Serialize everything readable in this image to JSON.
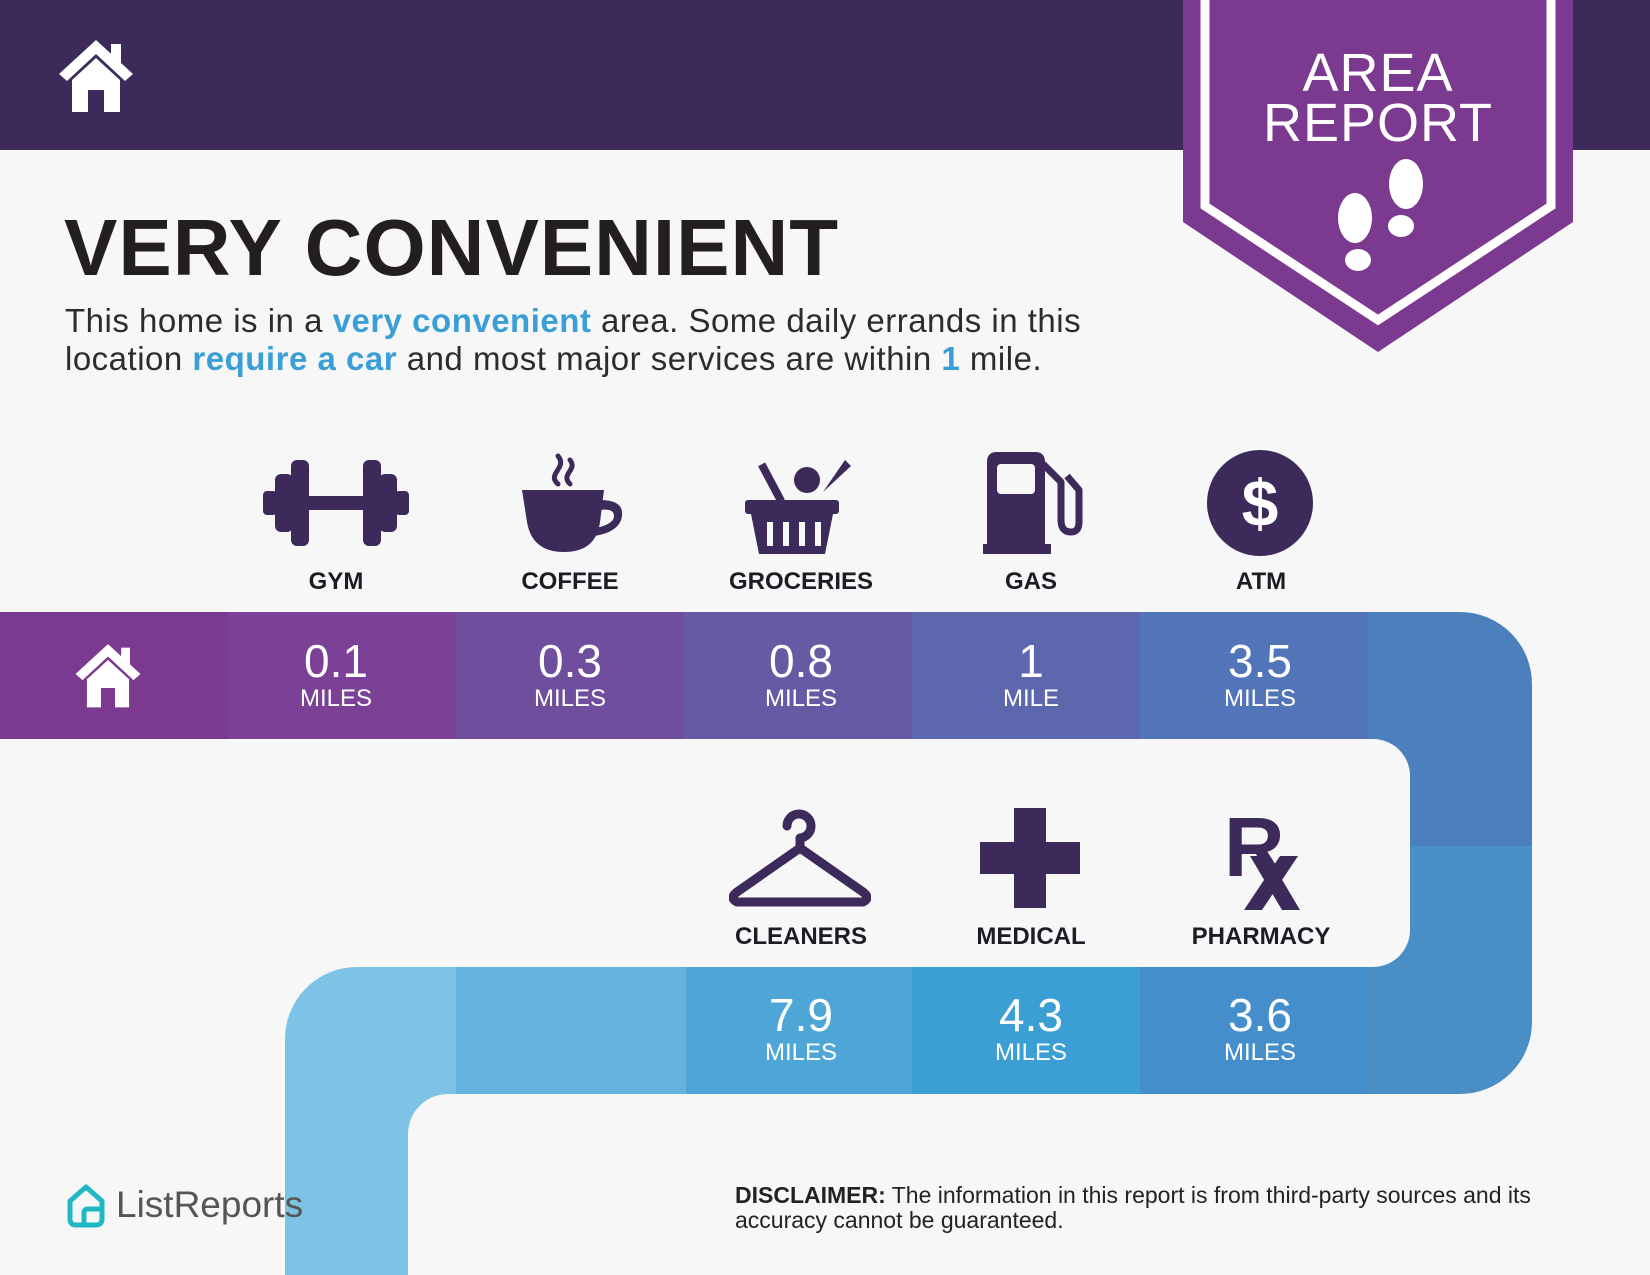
{
  "header": {
    "badge_line1": "AREA",
    "badge_line2": "REPORT"
  },
  "headline": "VERY CONVENIENT",
  "intro": {
    "p1": "This home is in a ",
    "h1": "very convenient",
    "p2": " area. Some daily errands in this location ",
    "h2": "require a car",
    "p3": " and most major services are within ",
    "h3": "1",
    "p4": " mile."
  },
  "amenities_top": [
    {
      "label": "GYM",
      "icon": "dumbbell-icon",
      "value": "0.1",
      "unit": "MILES"
    },
    {
      "label": "COFFEE",
      "icon": "coffee-cup-icon",
      "value": "0.3",
      "unit": "MILES"
    },
    {
      "label": "GROCERIES",
      "icon": "grocery-basket-icon",
      "value": "0.8",
      "unit": "MILES"
    },
    {
      "label": "GAS",
      "icon": "gas-pump-icon",
      "value": "1",
      "unit": "MILE"
    },
    {
      "label": "ATM",
      "icon": "dollar-icon",
      "value": "3.5",
      "unit": "MILES"
    }
  ],
  "amenities_bottom": [
    {
      "label": "CLEANERS",
      "icon": "hanger-icon",
      "value": "7.9",
      "unit": "MILES"
    },
    {
      "label": "MEDICAL",
      "icon": "medical-cross-icon",
      "value": "4.3",
      "unit": "MILES"
    },
    {
      "label": "PHARMACY",
      "icon": "rx-icon",
      "value": "3.6",
      "unit": "MILES"
    }
  ],
  "rx_glyph": "R",
  "footer": {
    "brand": "ListReports",
    "disclaimer_label": "DISCLAIMER:",
    "disclaimer_text": " The information in this report is from third-party sources and its accuracy cannot be guaranteed."
  },
  "colors": {
    "header": "#3b2a5a",
    "badge": "#7b3a8f",
    "icon": "#3b2a5a",
    "highlight": "#3a9fd6"
  }
}
